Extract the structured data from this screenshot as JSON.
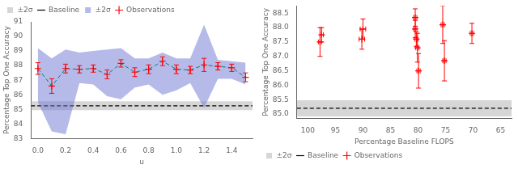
{
  "chart_data": [
    {
      "type": "scatter",
      "xlabel": "u",
      "ylabel": "Percentage Top One Accuracy",
      "xlim": [
        -0.05,
        1.55
      ],
      "ylim": [
        83,
        91
      ],
      "xticks": [
        {
          "value": 0.0,
          "label": "0.0"
        },
        0.2,
        0.4,
        0.6,
        0.8,
        {
          "value": 1.0,
          "label": "1.0"
        },
        1.2,
        1.4
      ],
      "yticks": [
        83,
        84,
        85,
        86,
        87,
        88,
        89,
        90,
        91
      ],
      "grid": false,
      "legend": "upper left",
      "series": [
        {
          "name": "±2σ",
          "type": "hspan",
          "color": "#bbbbbb",
          "lower": 84.95,
          "upper": 85.55
        },
        {
          "name": "Baseline",
          "type": "hline",
          "color": "black",
          "line_style": "dashed",
          "y": 85.25
        },
        {
          "name": "±2σ",
          "type": "band",
          "color": "#6b76d4",
          "x": [
            0.0,
            0.1,
            0.2,
            0.3,
            0.4,
            0.5,
            0.6,
            0.7,
            0.8,
            0.9,
            1.0,
            1.1,
            1.2,
            1.3,
            1.4,
            1.5
          ],
          "upper": [
            89.2,
            88.5,
            89.1,
            88.9,
            89.0,
            89.1,
            89.2,
            88.5,
            88.5,
            88.9,
            88.5,
            88.5,
            90.8,
            88.4,
            88.3,
            88.2
          ],
          "lower": [
            85.5,
            83.5,
            83.3,
            86.8,
            86.7,
            85.9,
            85.7,
            86.5,
            86.7,
            86.0,
            86.3,
            86.8,
            85.1,
            87.1,
            87.1,
            86.7
          ]
        },
        {
          "type": "line",
          "color": "#008080",
          "line_style": "dashed",
          "x": [
            0.0,
            0.1,
            0.2,
            0.3,
            0.4,
            0.5,
            0.6,
            0.7,
            0.8,
            0.9,
            1.0,
            1.1,
            1.2,
            1.3,
            1.4,
            1.5
          ],
          "values": [
            87.8,
            86.6,
            87.8,
            87.75,
            87.8,
            87.4,
            88.15,
            87.55,
            87.75,
            88.3,
            87.75,
            87.7,
            88.05,
            87.95,
            87.85,
            87.2
          ]
        },
        {
          "name": "Observations",
          "type": "errorbar",
          "color": "red",
          "marker": "plus",
          "x": [
            0.0,
            0.1,
            0.2,
            0.3,
            0.4,
            0.5,
            0.6,
            0.7,
            0.8,
            0.9,
            1.0,
            1.1,
            1.2,
            1.3,
            1.4,
            1.5
          ],
          "values": [
            87.8,
            86.6,
            87.8,
            87.75,
            87.8,
            87.4,
            88.15,
            87.55,
            87.75,
            88.3,
            87.75,
            87.7,
            88.05,
            87.95,
            87.85,
            87.2
          ],
          "yerr": [
            0.4,
            0.5,
            0.3,
            0.25,
            0.25,
            0.3,
            0.25,
            0.3,
            0.3,
            0.3,
            0.3,
            0.25,
            0.45,
            0.25,
            0.25,
            0.3
          ]
        }
      ]
    },
    {
      "type": "scatter",
      "xlabel": "Percentage Baseline FLOPS",
      "ylabel": "Percentage Top One Accuracy",
      "xlim": [
        102,
        63
      ],
      "ylim": [
        84.85,
        88.75
      ],
      "xticks": [
        100,
        95,
        90,
        85,
        80,
        75,
        70,
        65
      ],
      "yticks": [
        {
          "value": 85.0,
          "label": "85.0"
        },
        85.5,
        {
          "value": 86.0,
          "label": "86.0"
        },
        86.5,
        {
          "value": 87.0,
          "label": "87.0"
        },
        87.5,
        {
          "value": 88.0,
          "label": "88.0"
        },
        88.5
      ],
      "grid": false,
      "legend": "lower left",
      "series": [
        {
          "name": "±2σ",
          "type": "hspan",
          "color": "#bbbbbb",
          "lower": 84.92,
          "upper": 85.48
        },
        {
          "name": "Baseline",
          "type": "hline",
          "color": "black",
          "line_style": "dashed",
          "y": 85.2
        },
        {
          "name": "Observations",
          "type": "errorbar",
          "color": "red",
          "marker": "plus",
          "x": [
            97.5,
            97.8,
            90.0,
            90.2,
            80.5,
            80.5,
            80.3,
            80.1,
            79.9,
            75.5,
            75.2,
            70.2
          ],
          "values": [
            87.75,
            87.5,
            87.95,
            87.6,
            88.35,
            87.95,
            87.6,
            87.3,
            86.5,
            88.1,
            86.85,
            87.8
          ],
          "yerr": [
            0.25,
            0.5,
            0.35,
            0.35,
            0.3,
            0.3,
            0.25,
            0.5,
            0.6,
            0.65,
            0.7,
            0.35
          ],
          "xerr": [
            0.3,
            0.3,
            0.5,
            0.5,
            0.3,
            0.3,
            0.3,
            0.3,
            0.3,
            0.3,
            0.3,
            0.3
          ]
        }
      ]
    }
  ]
}
